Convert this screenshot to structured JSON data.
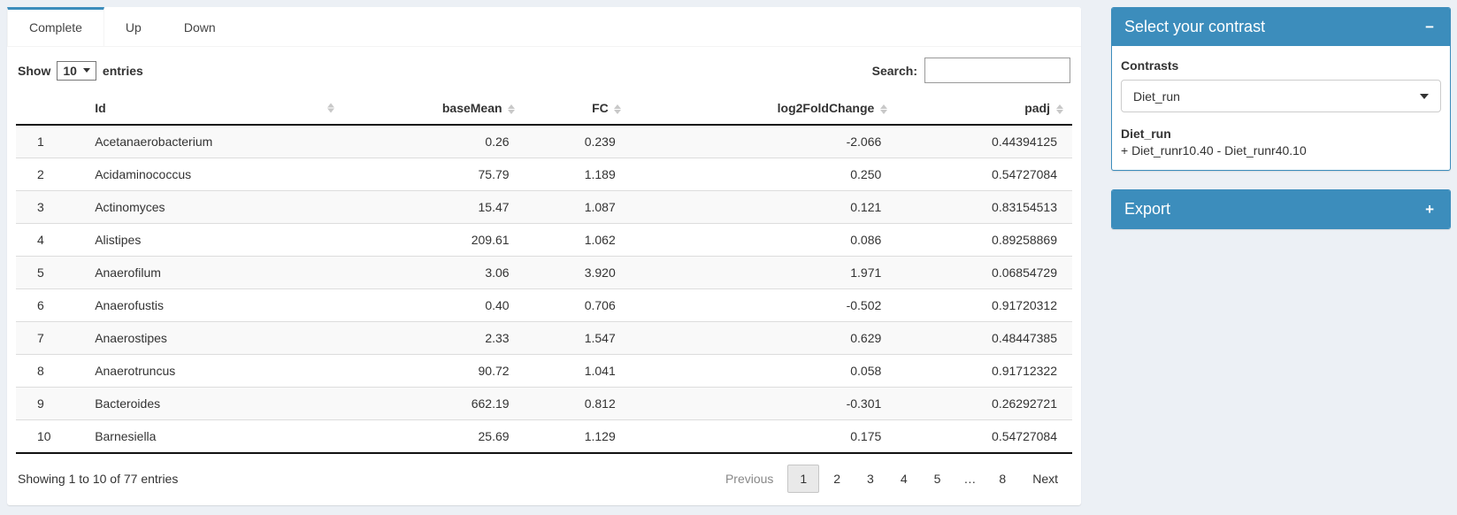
{
  "colors": {
    "accent": "#3c8dbc",
    "page_bg": "#ecf0f5",
    "stripe": "#f9f9f9"
  },
  "tabs": [
    {
      "label": "Complete",
      "active": true
    },
    {
      "label": "Up",
      "active": false
    },
    {
      "label": "Down",
      "active": false
    }
  ],
  "controls": {
    "show_label": "Show",
    "page_length": "10",
    "entries_label": "entries",
    "search_label": "Search:",
    "search_value": ""
  },
  "table": {
    "columns": [
      {
        "key": "rownum",
        "label": "",
        "sortable": false
      },
      {
        "key": "id",
        "label": "Id",
        "sortable": true
      },
      {
        "key": "basemean",
        "label": "baseMean",
        "sortable": true
      },
      {
        "key": "fc",
        "label": "FC",
        "sortable": true
      },
      {
        "key": "log2fc",
        "label": "log2FoldChange",
        "sortable": true
      },
      {
        "key": "padj",
        "label": "padj",
        "sortable": true
      }
    ],
    "rows": [
      {
        "num": "1",
        "id": "Acetanaerobacterium",
        "baseMean": "0.26",
        "fc": "0.239",
        "log2fc": "-2.066",
        "padj": "0.44394125"
      },
      {
        "num": "2",
        "id": "Acidaminococcus",
        "baseMean": "75.79",
        "fc": "1.189",
        "log2fc": "0.250",
        "padj": "0.54727084"
      },
      {
        "num": "3",
        "id": "Actinomyces",
        "baseMean": "15.47",
        "fc": "1.087",
        "log2fc": "0.121",
        "padj": "0.83154513"
      },
      {
        "num": "4",
        "id": "Alistipes",
        "baseMean": "209.61",
        "fc": "1.062",
        "log2fc": "0.086",
        "padj": "0.89258869"
      },
      {
        "num": "5",
        "id": "Anaerofilum",
        "baseMean": "3.06",
        "fc": "3.920",
        "log2fc": "1.971",
        "padj": "0.06854729"
      },
      {
        "num": "6",
        "id": "Anaerofustis",
        "baseMean": "0.40",
        "fc": "0.706",
        "log2fc": "-0.502",
        "padj": "0.91720312"
      },
      {
        "num": "7",
        "id": "Anaerostipes",
        "baseMean": "2.33",
        "fc": "1.547",
        "log2fc": "0.629",
        "padj": "0.48447385"
      },
      {
        "num": "8",
        "id": "Anaerotruncus",
        "baseMean": "90.72",
        "fc": "1.041",
        "log2fc": "0.058",
        "padj": "0.91712322"
      },
      {
        "num": "9",
        "id": "Bacteroides",
        "baseMean": "662.19",
        "fc": "0.812",
        "log2fc": "-0.301",
        "padj": "0.26292721"
      },
      {
        "num": "10",
        "id": "Barnesiella",
        "baseMean": "25.69",
        "fc": "1.129",
        "log2fc": "0.175",
        "padj": "0.54727084"
      }
    ]
  },
  "footer": {
    "info": "Showing 1 to 10 of 77 entries",
    "pages": [
      {
        "label": "Previous",
        "state": "disabled",
        "name": "pagination-previous"
      },
      {
        "label": "1",
        "state": "active",
        "name": "pagination-page-1"
      },
      {
        "label": "2",
        "state": "",
        "name": "pagination-page-2"
      },
      {
        "label": "3",
        "state": "",
        "name": "pagination-page-3"
      },
      {
        "label": "4",
        "state": "",
        "name": "pagination-page-4"
      },
      {
        "label": "5",
        "state": "",
        "name": "pagination-page-5"
      },
      {
        "label": "…",
        "state": "ellipsis",
        "name": "pagination-ellipsis"
      },
      {
        "label": "8",
        "state": "",
        "name": "pagination-page-8"
      },
      {
        "label": "Next",
        "state": "",
        "name": "pagination-next"
      }
    ]
  },
  "contrast_box": {
    "title": "Select your contrast",
    "collapse_icon": "−",
    "contrasts_label": "Contrasts",
    "selected": "Diet_run",
    "detail_name": "Diet_run",
    "detail_formula": "+ Diet_runr10.40 - Diet_runr40.10"
  },
  "export_box": {
    "title": "Export",
    "expand_icon": "+"
  }
}
